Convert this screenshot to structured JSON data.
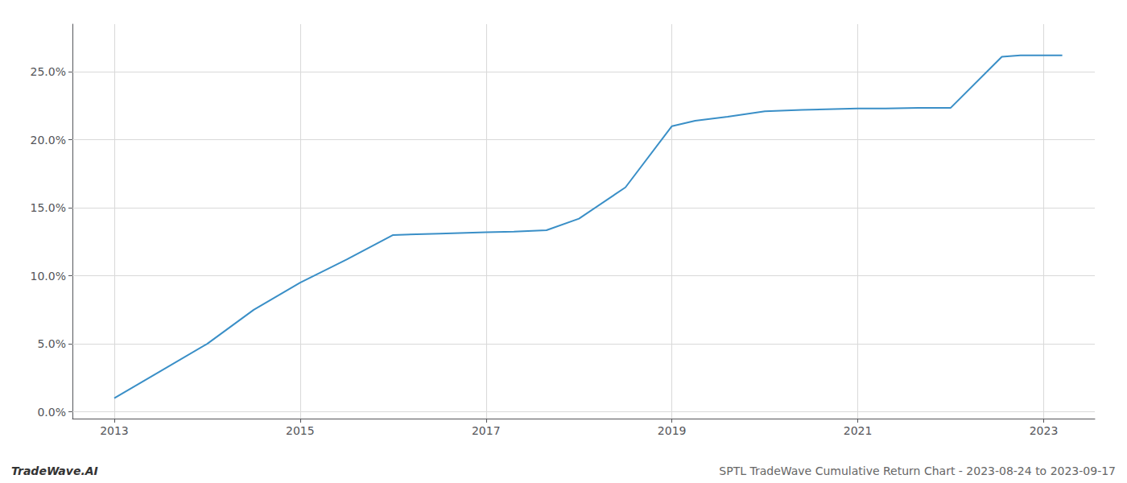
{
  "chart_data": {
    "type": "line",
    "x": [
      2013.0,
      2013.5,
      2014.0,
      2014.5,
      2015.0,
      2015.5,
      2016.0,
      2016.5,
      2017.0,
      2017.3,
      2017.65,
      2018.0,
      2018.5,
      2019.0,
      2019.25,
      2019.6,
      2020.0,
      2020.4,
      2021.0,
      2021.3,
      2021.65,
      2022.0,
      2022.55,
      2022.75,
      2023.0,
      2023.2
    ],
    "values": [
      1.0,
      3.0,
      5.0,
      7.5,
      9.5,
      11.2,
      13.0,
      13.1,
      13.2,
      13.25,
      13.35,
      14.2,
      16.5,
      21.0,
      21.4,
      21.7,
      22.1,
      22.2,
      22.3,
      22.3,
      22.35,
      22.35,
      26.1,
      26.2,
      26.2,
      26.2
    ],
    "color": "#3a8fc7",
    "xlim": [
      2012.55,
      2023.55
    ],
    "xticks": [
      2013,
      2015,
      2017,
      2019,
      2021,
      2023
    ],
    "ylim": [
      -0.5,
      28.5
    ],
    "yticks": [
      {
        "value": 0.0,
        "label": "0.0%"
      },
      {
        "value": 5.0,
        "label": "5.0%"
      },
      {
        "value": 10.0,
        "label": "10.0%"
      },
      {
        "value": 15.0,
        "label": "15.0%"
      },
      {
        "value": 20.0,
        "label": "20.0%"
      },
      {
        "value": 25.0,
        "label": "25.0%"
      }
    ],
    "grid": true,
    "annotations": [
      "TradeWave.AI",
      "SPTL TradeWave Cumulative Return Chart - 2023-08-24 to 2023-09-17"
    ]
  }
}
